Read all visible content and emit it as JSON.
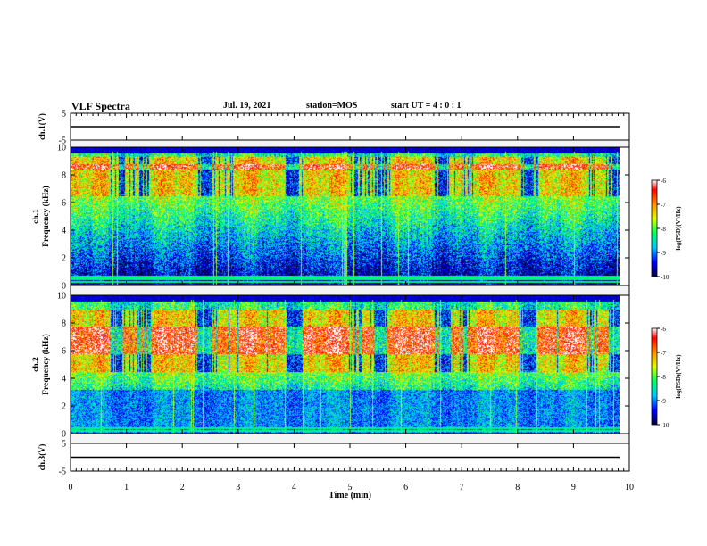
{
  "header": {
    "title": "VLF Spectra",
    "date": "Jul. 19, 2021",
    "station": "station=MOS",
    "start": "start UT =  4 : 0 : 1"
  },
  "chart_data": [
    {
      "type": "line",
      "panel": "ch1-waveform",
      "ylabel": "ch.1(V)",
      "ylim": [
        -5,
        5
      ],
      "y_ticks": [
        "5",
        "-5"
      ],
      "x": [
        0,
        9.83
      ],
      "values": [
        0,
        0
      ],
      "xlim": [
        0,
        10
      ]
    },
    {
      "type": "heatmap",
      "panel": "ch1-spectrogram",
      "ylabel": "ch.1\nFrequency (kHz)",
      "ylim": [
        0,
        10
      ],
      "y_ticks": [
        "0",
        "2",
        "4",
        "6",
        "8",
        "10"
      ],
      "xlim": [
        0,
        10
      ],
      "data_xmax": 9.83,
      "color_scale": {
        "label": "log(PSD)(V²/Hz)",
        "range": [
          -10,
          -6
        ],
        "ticks": [
          "-6",
          "-7",
          "-8",
          "-9",
          "-10"
        ],
        "colors": [
          "#000040",
          "#0000ff",
          "#00c8ff",
          "#00ff60",
          "#e0ff00",
          "#ff9000",
          "#ff0000",
          "#ffffff"
        ]
      },
      "features": {
        "main_band_khz": [
          6.5,
          9.3
        ],
        "peak_band_khz": [
          8.4,
          8.8
        ],
        "low_lines_khz": [
          0.3,
          0.5,
          0.65
        ]
      }
    },
    {
      "type": "heatmap",
      "panel": "ch2-spectrogram",
      "ylabel": "ch.2\nFrequency (kHz)",
      "ylim": [
        0,
        10
      ],
      "y_ticks": [
        "0",
        "2",
        "4",
        "6",
        "8",
        "10"
      ],
      "xlim": [
        0,
        10
      ],
      "data_xmax": 9.83,
      "color_scale": {
        "label": "log(PSD)(V²/Hz)",
        "range": [
          -10,
          -6
        ],
        "ticks": [
          "-6",
          "-7",
          "-8",
          "-9",
          "-10"
        ],
        "colors": [
          "#000040",
          "#0000ff",
          "#00c8ff",
          "#00ff60",
          "#e0ff00",
          "#ff9000",
          "#ff0000",
          "#ffffff"
        ]
      },
      "features": {
        "main_band_khz": [
          4.5,
          9.0
        ],
        "peak_band_khz": [
          5.8,
          7.8
        ],
        "low_lines_khz": [
          0.2,
          0.4
        ]
      }
    },
    {
      "type": "line",
      "panel": "ch3-waveform",
      "ylabel": "ch.3(V)",
      "ylim": [
        -5,
        5
      ],
      "y_ticks": [
        "5",
        "-5"
      ],
      "x": [
        0,
        9.83
      ],
      "values": [
        0,
        0
      ],
      "xlim": [
        0,
        10
      ]
    }
  ],
  "x_axis": {
    "label": "Time (min)",
    "ticks": [
      "0",
      "1",
      "2",
      "3",
      "4",
      "5",
      "6",
      "7",
      "8",
      "9",
      "10"
    ]
  }
}
